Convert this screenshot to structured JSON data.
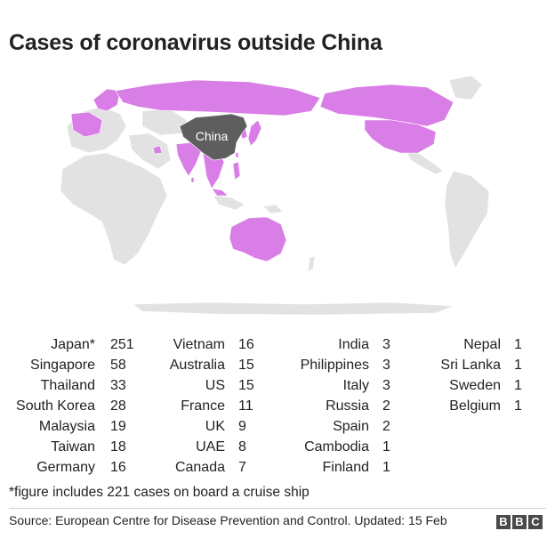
{
  "title": "Cases of coronavirus outside China",
  "map": {
    "label": "China",
    "colors": {
      "affected": "#d97ee6",
      "china": "#5e5e5e",
      "other": "#e2e2e2",
      "border": "#ffffff"
    }
  },
  "countries": [
    {
      "name": "Japan*",
      "cases": "251"
    },
    {
      "name": "Singapore",
      "cases": "58"
    },
    {
      "name": "Thailand",
      "cases": "33"
    },
    {
      "name": "South Korea",
      "cases": "28"
    },
    {
      "name": "Malaysia",
      "cases": "19"
    },
    {
      "name": "Taiwan",
      "cases": "18"
    },
    {
      "name": "Germany",
      "cases": "16"
    },
    {
      "name": "Vietnam",
      "cases": "16"
    },
    {
      "name": "Australia",
      "cases": "15"
    },
    {
      "name": "US",
      "cases": "15"
    },
    {
      "name": "France",
      "cases": "11"
    },
    {
      "name": "UK",
      "cases": "9"
    },
    {
      "name": "UAE",
      "cases": "8"
    },
    {
      "name": "Canada",
      "cases": "7"
    },
    {
      "name": "India",
      "cases": "3"
    },
    {
      "name": "Philippines",
      "cases": "3"
    },
    {
      "name": "Italy",
      "cases": "3"
    },
    {
      "name": "Russia",
      "cases": "2"
    },
    {
      "name": "Spain",
      "cases": "2"
    },
    {
      "name": "Cambodia",
      "cases": "1"
    },
    {
      "name": "Finland",
      "cases": "1"
    },
    {
      "name": "Nepal",
      "cases": "1"
    },
    {
      "name": "Sri Lanka",
      "cases": "1"
    },
    {
      "name": "Sweden",
      "cases": "1"
    },
    {
      "name": "Belgium",
      "cases": "1"
    }
  ],
  "footnote": "*figure includes 221 cases on board a cruise ship",
  "source": "Source: European Centre for Disease Prevention and Control. Updated: 15 Feb",
  "logo": [
    "B",
    "B",
    "C"
  ]
}
